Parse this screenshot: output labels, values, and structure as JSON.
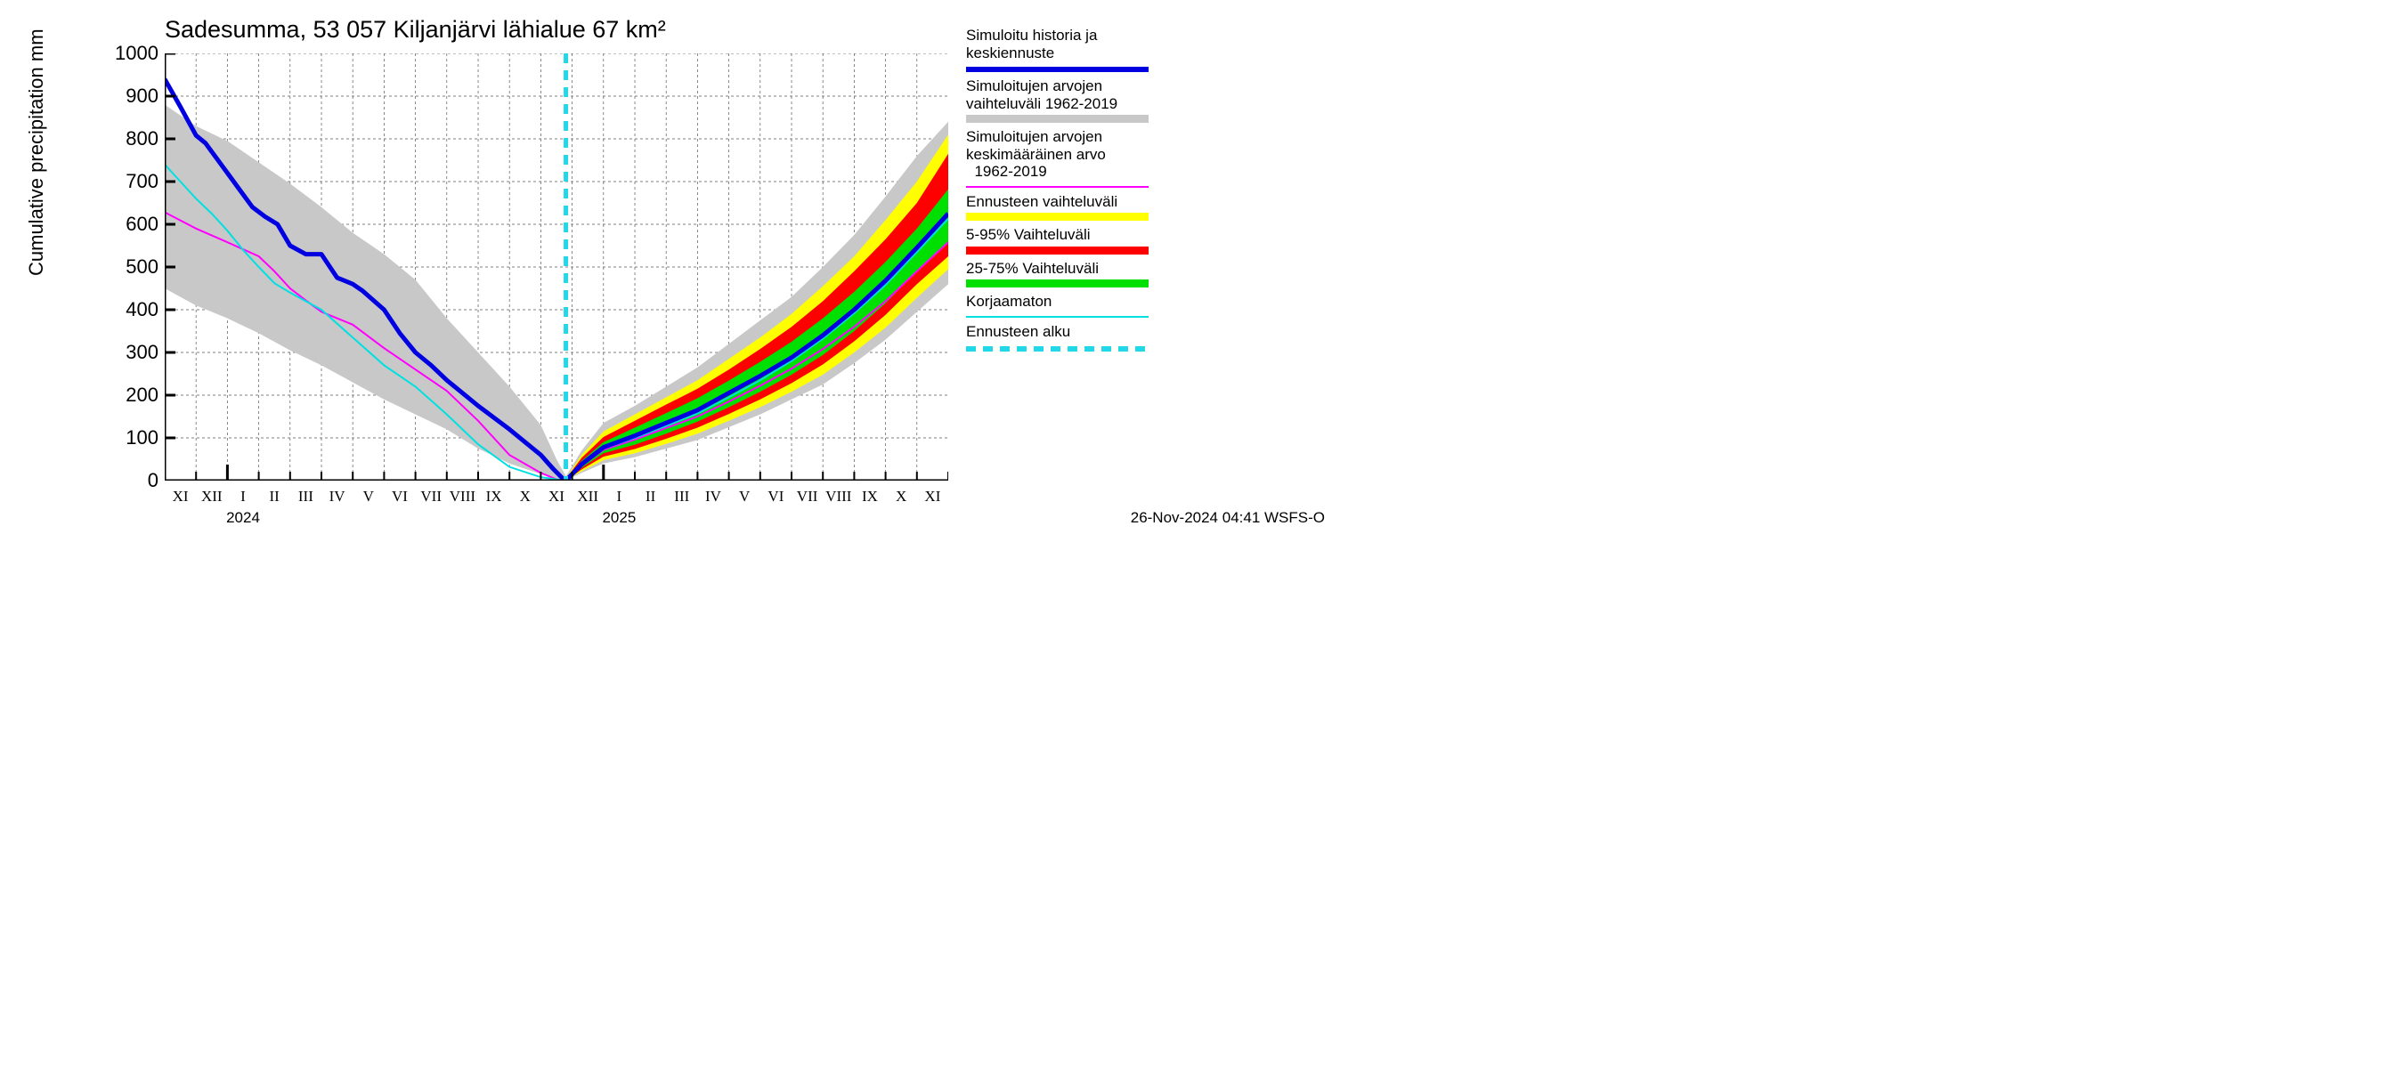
{
  "chart": {
    "type": "line-area",
    "title": "Sadesumma, 53 057 Kiljanjärvi lähialue 67 km²",
    "ylabel": "Cumulative precipitation   mm",
    "title_fontsize": 27,
    "label_fontsize": 22,
    "tick_fontsize": 22,
    "xtick_fontsize": 17,
    "footer_fontsize": 17,
    "background_color": "#ffffff",
    "grid_color": "#555555",
    "grid_dash": "3 3",
    "axis_color": "#000000",
    "axis_width": 3,
    "ylim": [
      0,
      1000
    ],
    "yticks": [
      0,
      100,
      200,
      300,
      400,
      500,
      600,
      700,
      800,
      900,
      1000
    ],
    "xlim_months": 25,
    "xticks": {
      "labels": [
        "XI",
        "XII",
        "I",
        "II",
        "III",
        "IV",
        "V",
        "VI",
        "VII",
        "VIII",
        "IX",
        "X",
        "XI",
        "XII",
        "I",
        "II",
        "III",
        "IV",
        "V",
        "VI",
        "VII",
        "VIII",
        "IX",
        "X",
        "XI"
      ],
      "year_labels": [
        {
          "pos_month_index": 2.5,
          "text": "2024"
        },
        {
          "pos_month_index": 14.5,
          "text": "2025"
        }
      ],
      "major_tick_months": [
        2,
        14
      ]
    },
    "forecast_start_month_index": 12.8,
    "series": {
      "gray_band_left": {
        "color": "#c8c8c8",
        "upper": [
          880,
          830,
          795,
          745,
          695,
          640,
          580,
          530,
          470,
          380,
          300,
          220,
          130,
          50,
          10
        ],
        "lower": [
          450,
          410,
          380,
          345,
          305,
          270,
          230,
          190,
          155,
          120,
          75,
          40,
          15,
          5,
          0
        ],
        "x_idx": [
          0,
          1,
          2,
          3,
          4,
          5,
          6,
          7,
          8,
          9,
          10,
          11,
          12,
          12.5,
          12.8
        ]
      },
      "gray_band_right": {
        "color": "#c8c8c8",
        "upper": [
          10,
          70,
          135,
          175,
          220,
          265,
          320,
          375,
          430,
          500,
          575,
          665,
          760,
          840
        ],
        "lower": [
          0,
          18,
          40,
          55,
          75,
          95,
          125,
          155,
          190,
          225,
          275,
          330,
          395,
          460
        ],
        "x_idx": [
          12.8,
          13.3,
          14,
          15,
          16,
          17,
          18,
          19,
          20,
          21,
          22,
          23,
          24,
          25
        ]
      },
      "yellow_band": {
        "color": "#ffff00",
        "upper": [
          5,
          60,
          115,
          155,
          195,
          235,
          285,
          335,
          390,
          455,
          525,
          610,
          700,
          810
        ],
        "lower": [
          0,
          22,
          48,
          64,
          86,
          110,
          140,
          172,
          208,
          248,
          300,
          358,
          428,
          495
        ],
        "x_idx": [
          12.8,
          13.3,
          14,
          15,
          16,
          17,
          18,
          19,
          20,
          21,
          22,
          23,
          24,
          25
        ]
      },
      "red_band": {
        "color": "#ff0000",
        "upper": [
          4,
          53,
          102,
          140,
          178,
          215,
          260,
          308,
          360,
          420,
          490,
          565,
          650,
          765
        ],
        "lower": [
          0,
          26,
          56,
          74,
          98,
          124,
          156,
          190,
          228,
          272,
          326,
          388,
          460,
          525
        ],
        "x_idx": [
          12.8,
          13.3,
          14,
          15,
          16,
          17,
          18,
          19,
          20,
          21,
          22,
          23,
          24,
          25
        ]
      },
      "green_band": {
        "color": "#00e000",
        "upper": [
          3,
          46,
          90,
          124,
          158,
          193,
          234,
          278,
          325,
          380,
          442,
          512,
          590,
          682
        ],
        "lower": [
          0,
          30,
          64,
          84,
          110,
          138,
          172,
          208,
          248,
          294,
          350,
          415,
          490,
          560
        ],
        "x_idx": [
          12.8,
          13.3,
          14,
          15,
          16,
          17,
          18,
          19,
          20,
          21,
          22,
          23,
          24,
          25
        ]
      },
      "blue_main": {
        "color": "#0000e0",
        "width": 5,
        "y": [
          940,
          875,
          808,
          790,
          720,
          680,
          640,
          618,
          600,
          550,
          530,
          530,
          475,
          460,
          445,
          400,
          345,
          300,
          270,
          235,
          175,
          120,
          60,
          27,
          5,
          0,
          38,
          78,
          105,
          135,
          165,
          205,
          245,
          288,
          340,
          400,
          468,
          545,
          625
        ],
        "x_idx": [
          0,
          0.5,
          1,
          1.3,
          2,
          2.4,
          2.8,
          3.2,
          3.6,
          4,
          4.5,
          5,
          5.5,
          6,
          6.3,
          7,
          7.5,
          8,
          8.5,
          9,
          10,
          11,
          12,
          12.4,
          12.7,
          12.8,
          13.3,
          14,
          15,
          16,
          17,
          18,
          19,
          20,
          21,
          22,
          23,
          24,
          25
        ]
      },
      "magenta": {
        "color": "#ff00ff",
        "width": 2,
        "y": [
          628,
          590,
          558,
          525,
          490,
          450,
          422,
          395,
          365,
          310,
          260,
          210,
          140,
          60,
          18,
          3,
          0,
          35,
          72,
          96,
          123,
          150,
          185,
          222,
          262,
          308,
          360,
          420,
          490,
          558
        ],
        "x_idx": [
          0,
          1,
          2,
          3,
          3.5,
          4,
          4.5,
          5,
          6,
          7,
          8,
          9,
          10,
          11,
          12,
          12.5,
          12.8,
          13.3,
          14,
          15,
          16,
          17,
          18,
          19,
          20,
          21,
          22,
          23,
          24,
          25
        ]
      },
      "cyan": {
        "color": "#00e0e0",
        "width": 2,
        "y": [
          740,
          700,
          660,
          625,
          585,
          540,
          500,
          462,
          440,
          400,
          335,
          270,
          220,
          155,
          85,
          32,
          8,
          0
        ],
        "x_idx": [
          0,
          0.5,
          1,
          1.5,
          2,
          2.5,
          3,
          3.5,
          4,
          5,
          6,
          7,
          8,
          9,
          10,
          11,
          12,
          12.8
        ]
      },
      "cyan_right": {
        "color": "#00e0e0",
        "width": 2,
        "y": [
          0,
          36,
          75,
          100,
          128,
          157,
          195,
          235,
          280,
          332,
          392,
          458,
          535,
          613
        ],
        "x_idx": [
          12.8,
          13.3,
          14,
          15,
          16,
          17,
          18,
          19,
          20,
          21,
          22,
          23,
          24,
          25
        ]
      },
      "forecast_marker": {
        "color": "#22d8e8",
        "width": 5,
        "dash": "11 8"
      }
    },
    "legend": [
      {
        "text_lines": [
          "Simuloitu historia ja",
          "keskiennuste"
        ],
        "type": "line",
        "color": "#0000e0",
        "height": 6
      },
      {
        "text_lines": [
          "Simuloitujen arvojen",
          "vaihteluväli 1962-2019"
        ],
        "type": "swatch",
        "color": "#c8c8c8"
      },
      {
        "text_lines": [
          "Simuloitujen arvojen",
          "keskimääräinen arvo",
          "  1962-2019"
        ],
        "type": "line",
        "color": "#ff00ff",
        "height": 2
      },
      {
        "text_lines": [
          "Ennusteen vaihteluväli"
        ],
        "type": "swatch",
        "color": "#ffff00"
      },
      {
        "text_lines": [
          "5-95% Vaihteluväli"
        ],
        "type": "swatch",
        "color": "#ff0000"
      },
      {
        "text_lines": [
          "25-75% Vaihteluväli"
        ],
        "type": "swatch",
        "color": "#00e000"
      },
      {
        "text_lines": [
          "Korjaamaton"
        ],
        "type": "line",
        "color": "#00e0e0",
        "height": 2
      },
      {
        "text_lines": [
          "Ennusteen alku"
        ],
        "type": "dash",
        "color": "#22d8e8",
        "height": 6
      }
    ],
    "footer": "26-Nov-2024 04:41 WSFS-O"
  }
}
